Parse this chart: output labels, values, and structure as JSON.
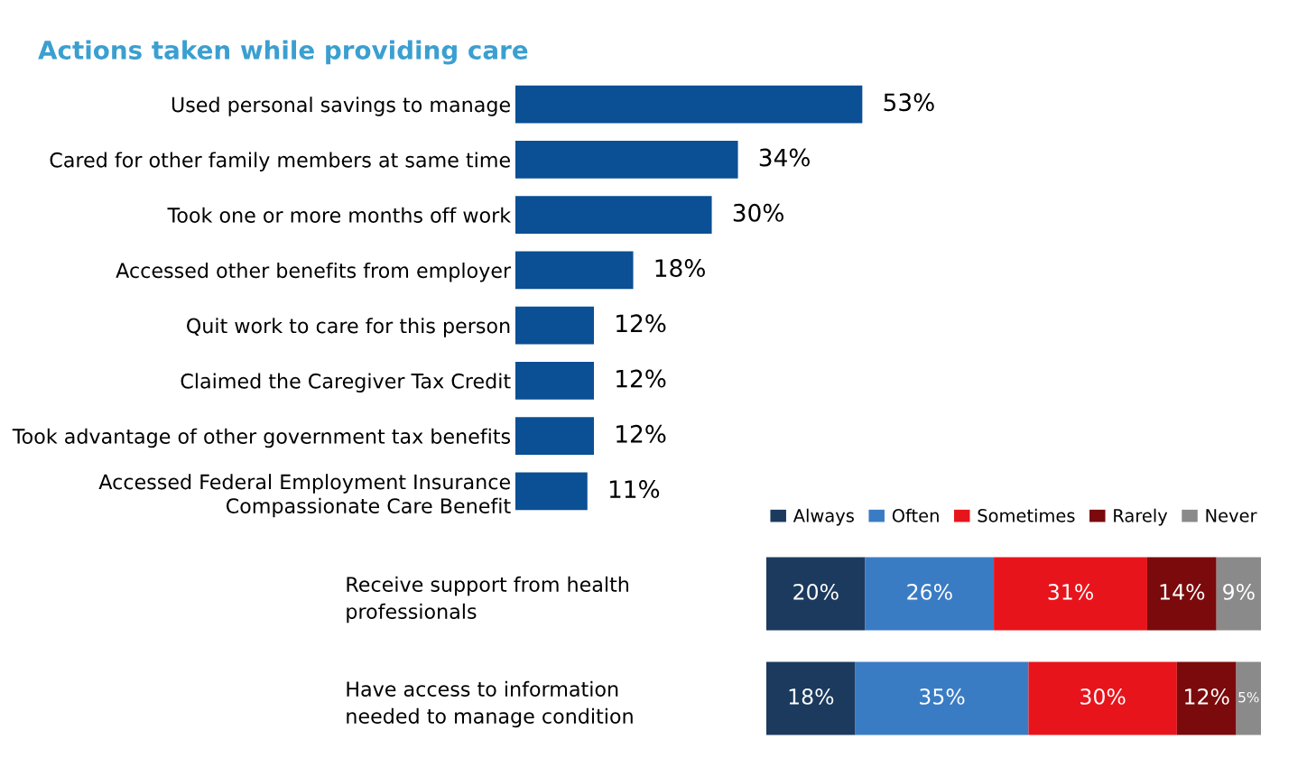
{
  "chart_data": [
    {
      "type": "bar",
      "orientation": "horizontal",
      "title": "Actions taken while providing care",
      "categories": [
        "Used personal savings to manage",
        "Cared for other family members at same time",
        "Took one or more months off work",
        "Accessed other benefits from employer",
        "Quit work to care for this person",
        "Claimed the Caregiver Tax Credit",
        "Took advantage of other government tax benefits",
        "Accessed Federal Employment Insurance\nCompassionate Care Benefit"
      ],
      "values": [
        53,
        34,
        30,
        18,
        12,
        12,
        12,
        11
      ],
      "value_labels": [
        "53%",
        "34%",
        "30%",
        "18%",
        "12%",
        "12%",
        "12%",
        "11%"
      ],
      "color": "#0b4f94",
      "legend": false,
      "grid": false
    },
    {
      "type": "bar",
      "orientation": "horizontal",
      "stacked": true,
      "legend": "top",
      "grid": false,
      "categories": [
        "Receive support from health\nprofessionals",
        "Have access to information\nneeded to manage condition"
      ],
      "series": [
        {
          "name": "Always",
          "color": "#1b3a5e",
          "values": [
            20,
            18
          ],
          "value_labels": [
            "20%",
            "18%"
          ]
        },
        {
          "name": "Often",
          "color": "#3a7cc4",
          "values": [
            26,
            35
          ],
          "value_labels": [
            "26%",
            "35%"
          ]
        },
        {
          "name": "Sometimes",
          "color": "#e8141c",
          "values": [
            31,
            30
          ],
          "value_labels": [
            "31%",
            "30%"
          ]
        },
        {
          "name": "Rarely",
          "color": "#7a0a0c",
          "values": [
            14,
            12
          ],
          "value_labels": [
            "14%",
            "12%"
          ]
        },
        {
          "name": "Never",
          "color": "#8a8a8a",
          "values": [
            9,
            5
          ],
          "value_labels": [
            "9%",
            "5%"
          ]
        }
      ]
    }
  ]
}
